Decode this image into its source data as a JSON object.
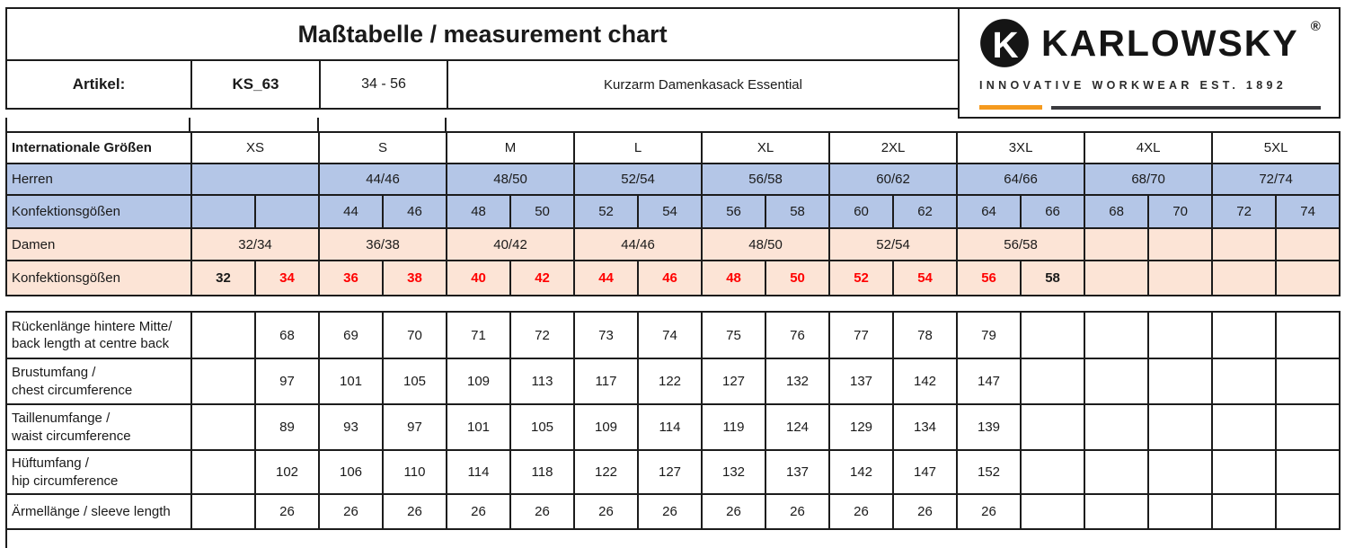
{
  "header": {
    "title": "Maßtabelle / measurement chart",
    "artikel_label": "Artikel:",
    "artikel_code": "KS_63",
    "artikel_size_range": "34 - 56",
    "product_name": "Kurzarm Damenkasack Essential"
  },
  "logo": {
    "brand": "KARLOWSKY",
    "registered_mark": "®",
    "tagline": "INNOVATIVE WORKWEAR EST. 1892",
    "monogram_letter": "K",
    "accent_color": "#F59A1E"
  },
  "colors": {
    "herren_row_bg": "#B4C6E7",
    "damen_row_bg": "#FCE4D6",
    "damen_highlight_text": "#FF0000",
    "border": "#1C1C1C"
  },
  "size_table": {
    "rows": [
      {
        "key": "international-sizes",
        "label": "Internationale Größen",
        "style": "white",
        "label_bold": true,
        "cells": [
          {
            "t": "XS",
            "span": 2
          },
          {
            "t": "S",
            "span": 2
          },
          {
            "t": "M",
            "span": 2
          },
          {
            "t": "L",
            "span": 2
          },
          {
            "t": "XL",
            "span": 2
          },
          {
            "t": "2XL",
            "span": 2
          },
          {
            "t": "3XL",
            "span": 2
          },
          {
            "t": "4XL",
            "span": 2
          },
          {
            "t": "5XL",
            "span": 2
          }
        ]
      },
      {
        "key": "herren",
        "label": "Herren",
        "style": "blue",
        "label_bold": false,
        "cells": [
          {
            "t": "",
            "span": 2
          },
          {
            "t": "44/46",
            "span": 2
          },
          {
            "t": "48/50",
            "span": 2
          },
          {
            "t": "52/54",
            "span": 2
          },
          {
            "t": "56/58",
            "span": 2
          },
          {
            "t": "60/62",
            "span": 2
          },
          {
            "t": "64/66",
            "span": 2
          },
          {
            "t": "68/70",
            "span": 2
          },
          {
            "t": "72/74",
            "span": 2
          }
        ]
      },
      {
        "key": "konfektionsgroessen-herren",
        "label": "Konfektionsgößen",
        "style": "blue",
        "label_bold": false,
        "cells": [
          {
            "t": ""
          },
          {
            "t": ""
          },
          {
            "t": "44"
          },
          {
            "t": "46"
          },
          {
            "t": "48"
          },
          {
            "t": "50"
          },
          {
            "t": "52"
          },
          {
            "t": "54"
          },
          {
            "t": "56"
          },
          {
            "t": "58"
          },
          {
            "t": "60"
          },
          {
            "t": "62"
          },
          {
            "t": "64"
          },
          {
            "t": "66"
          },
          {
            "t": "68"
          },
          {
            "t": "70"
          },
          {
            "t": "72"
          },
          {
            "t": "74"
          }
        ]
      },
      {
        "key": "damen",
        "label": "Damen",
        "style": "pink",
        "label_bold": false,
        "cells": [
          {
            "t": "32/34",
            "span": 2
          },
          {
            "t": "36/38",
            "span": 2
          },
          {
            "t": "40/42",
            "span": 2
          },
          {
            "t": "44/46",
            "span": 2
          },
          {
            "t": "48/50",
            "span": 2
          },
          {
            "t": "52/54",
            "span": 2
          },
          {
            "t": "56/58",
            "span": 2
          },
          {
            "t": ""
          },
          {
            "t": ""
          },
          {
            "t": ""
          },
          {
            "t": ""
          }
        ]
      },
      {
        "key": "konfektionsgroessen-damen",
        "label": "Konfektionsgößen",
        "style": "pink",
        "label_bold": false,
        "cells": [
          {
            "t": "32",
            "bold": true
          },
          {
            "t": "34",
            "bold": true,
            "red": true
          },
          {
            "t": "36",
            "bold": true,
            "red": true
          },
          {
            "t": "38",
            "bold": true,
            "red": true
          },
          {
            "t": "40",
            "bold": true,
            "red": true
          },
          {
            "t": "42",
            "bold": true,
            "red": true
          },
          {
            "t": "44",
            "bold": true,
            "red": true
          },
          {
            "t": "46",
            "bold": true,
            "red": true
          },
          {
            "t": "48",
            "bold": true,
            "red": true
          },
          {
            "t": "50",
            "bold": true,
            "red": true
          },
          {
            "t": "52",
            "bold": true,
            "red": true
          },
          {
            "t": "54",
            "bold": true,
            "red": true
          },
          {
            "t": "56",
            "bold": true,
            "red": true
          },
          {
            "t": "58",
            "bold": true
          },
          {
            "t": ""
          },
          {
            "t": ""
          },
          {
            "t": ""
          },
          {
            "t": ""
          }
        ]
      }
    ]
  },
  "measurement_table": {
    "rows": [
      {
        "key": "back-length",
        "label_line1": "Rückenlänge hintere Mitte/",
        "label_line2": "back length at centre back",
        "values": [
          "",
          "68",
          "69",
          "70",
          "71",
          "72",
          "73",
          "74",
          "75",
          "76",
          "77",
          "78",
          "79",
          "",
          "",
          "",
          "",
          ""
        ]
      },
      {
        "key": "chest-circumference",
        "label_line1": "Brustumfang /",
        "label_line2": "chest circumference",
        "values": [
          "",
          "97",
          "101",
          "105",
          "109",
          "113",
          "117",
          "122",
          "127",
          "132",
          "137",
          "142",
          "147",
          "",
          "",
          "",
          "",
          ""
        ]
      },
      {
        "key": "waist-circumference",
        "label_line1": "Taillenumfange /",
        "label_line2": "waist circumference",
        "values": [
          "",
          "89",
          "93",
          "97",
          "101",
          "105",
          "109",
          "114",
          "119",
          "124",
          "129",
          "134",
          "139",
          "",
          "",
          "",
          "",
          ""
        ]
      },
      {
        "key": "hip-circumference",
        "label_line1": "Hüftumfang /",
        "label_line2": "hip circumference",
        "values": [
          "",
          "102",
          "106",
          "110",
          "114",
          "118",
          "122",
          "127",
          "132",
          "137",
          "142",
          "147",
          "152",
          "",
          "",
          "",
          "",
          ""
        ]
      },
      {
        "key": "sleeve-length",
        "label_line1": "Ärmellänge / sleeve length",
        "label_line2": "",
        "values": [
          "",
          "26",
          "26",
          "26",
          "26",
          "26",
          "26",
          "26",
          "26",
          "26",
          "26",
          "26",
          "26",
          "",
          "",
          "",
          "",
          ""
        ]
      }
    ]
  }
}
